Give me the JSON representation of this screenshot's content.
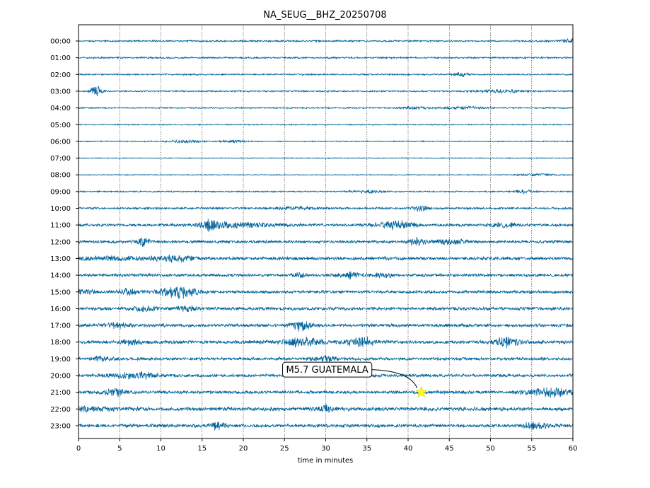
{
  "chart_data": {
    "type": "line",
    "title": "NA_SEUG__BHZ_20250708",
    "xlabel": "time in minutes",
    "ylabel": "",
    "xlim": [
      0,
      60
    ],
    "x_ticks": [
      0,
      5,
      10,
      15,
      20,
      25,
      30,
      35,
      40,
      45,
      50,
      55,
      60
    ],
    "grid": "vertical dotted",
    "trace_color": "#00639a",
    "rows": [
      {
        "label": "00:00",
        "amp": 0.22,
        "bursts": [
          {
            "t": 59.5,
            "w": 0.6,
            "a": 0.5
          }
        ]
      },
      {
        "label": "01:00",
        "amp": 0.22,
        "bursts": []
      },
      {
        "label": "02:00",
        "amp": 0.2,
        "bursts": [
          {
            "t": 46.5,
            "w": 0.6,
            "a": 0.6
          }
        ]
      },
      {
        "label": "03:00",
        "amp": 0.2,
        "bursts": [
          {
            "t": 2.2,
            "w": 0.5,
            "a": 1.5
          },
          {
            "t": 51,
            "w": 2,
            "a": 0.35
          }
        ]
      },
      {
        "label": "04:00",
        "amp": 0.18,
        "bursts": [
          {
            "t": 41,
            "w": 1.2,
            "a": 0.35
          },
          {
            "t": 47,
            "w": 1.5,
            "a": 0.3
          }
        ]
      },
      {
        "label": "05:00",
        "amp": 0.15,
        "bursts": []
      },
      {
        "label": "06:00",
        "amp": 0.15,
        "bursts": [
          {
            "t": 13,
            "w": 1.5,
            "a": 0.3
          },
          {
            "t": 19,
            "w": 1,
            "a": 0.3
          }
        ]
      },
      {
        "label": "07:00",
        "amp": 0.12,
        "bursts": []
      },
      {
        "label": "08:00",
        "amp": 0.12,
        "bursts": [
          {
            "t": 56,
            "w": 1.5,
            "a": 0.3
          }
        ]
      },
      {
        "label": "09:00",
        "amp": 0.18,
        "bursts": [
          {
            "t": 35,
            "w": 1.5,
            "a": 0.3
          },
          {
            "t": 54,
            "w": 0.8,
            "a": 0.4
          }
        ]
      },
      {
        "label": "10:00",
        "amp": 0.28,
        "bursts": [
          {
            "t": 41.5,
            "w": 0.6,
            "a": 0.8
          },
          {
            "t": 26,
            "w": 2,
            "a": 0.35
          }
        ]
      },
      {
        "label": "11:00",
        "amp": 0.35,
        "bursts": [
          {
            "t": 16,
            "w": 0.5,
            "a": 1.4
          },
          {
            "t": 19,
            "w": 3.5,
            "a": 0.6
          },
          {
            "t": 38.5,
            "w": 1.5,
            "a": 1.1
          },
          {
            "t": 51.5,
            "w": 1,
            "a": 0.6
          }
        ]
      },
      {
        "label": "12:00",
        "amp": 0.38,
        "bursts": [
          {
            "t": 7.8,
            "w": 0.5,
            "a": 1.3
          },
          {
            "t": 41,
            "w": 0.8,
            "a": 0.8
          },
          {
            "t": 45,
            "w": 1.5,
            "a": 0.5
          }
        ]
      },
      {
        "label": "13:00",
        "amp": 0.42,
        "bursts": [
          {
            "t": 11.5,
            "w": 1.5,
            "a": 0.8
          },
          {
            "t": 4,
            "w": 3,
            "a": 0.4
          }
        ]
      },
      {
        "label": "14:00",
        "amp": 0.38,
        "bursts": [
          {
            "t": 33,
            "w": 0.8,
            "a": 0.8
          },
          {
            "t": 37,
            "w": 0.8,
            "a": 0.6
          },
          {
            "t": 27,
            "w": 0.5,
            "a": 0.5
          }
        ]
      },
      {
        "label": "15:00",
        "amp": 0.38,
        "bursts": [
          {
            "t": 12,
            "w": 1.5,
            "a": 1.5
          },
          {
            "t": 6,
            "w": 1,
            "a": 0.7
          },
          {
            "t": 0.5,
            "w": 1,
            "a": 0.7
          }
        ]
      },
      {
        "label": "16:00",
        "amp": 0.42,
        "bursts": [
          {
            "t": 8,
            "w": 1,
            "a": 0.5
          },
          {
            "t": 13,
            "w": 1,
            "a": 0.5
          }
        ]
      },
      {
        "label": "17:00",
        "amp": 0.42,
        "bursts": [
          {
            "t": 27,
            "w": 0.8,
            "a": 1.2
          },
          {
            "t": 4.5,
            "w": 1,
            "a": 0.6
          }
        ]
      },
      {
        "label": "18:00",
        "amp": 0.45,
        "bursts": [
          {
            "t": 27,
            "w": 1.5,
            "a": 1.1
          },
          {
            "t": 34.5,
            "w": 1.2,
            "a": 1
          },
          {
            "t": 52,
            "w": 1,
            "a": 1.1
          },
          {
            "t": 6.5,
            "w": 0.8,
            "a": 0.8
          }
        ]
      },
      {
        "label": "19:00",
        "amp": 0.38,
        "bursts": [
          {
            "t": 30,
            "w": 1,
            "a": 0.6
          },
          {
            "t": 3,
            "w": 1,
            "a": 0.5
          }
        ]
      },
      {
        "label": "20:00",
        "amp": 0.4,
        "bursts": [
          {
            "t": 7,
            "w": 2,
            "a": 0.7
          }
        ]
      },
      {
        "label": "21:00",
        "amp": 0.42,
        "bursts": [
          {
            "t": 4.5,
            "w": 0.8,
            "a": 0.8
          },
          {
            "t": 57.5,
            "w": 2,
            "a": 1.1
          }
        ]
      },
      {
        "label": "22:00",
        "amp": 0.48,
        "bursts": [
          {
            "t": 1,
            "w": 2,
            "a": 0.5
          },
          {
            "t": 30,
            "w": 0.8,
            "a": 0.7
          }
        ]
      },
      {
        "label": "23:00",
        "amp": 0.45,
        "bursts": [
          {
            "t": 17,
            "w": 0.6,
            "a": 1
          },
          {
            "t": 55.5,
            "w": 1,
            "a": 0.8
          }
        ]
      }
    ],
    "annotations": [
      {
        "text": "M5.7 GUATEMALA",
        "row": 21,
        "t": 41.6,
        "marker": "star",
        "marker_color": "#ffff00"
      }
    ]
  }
}
